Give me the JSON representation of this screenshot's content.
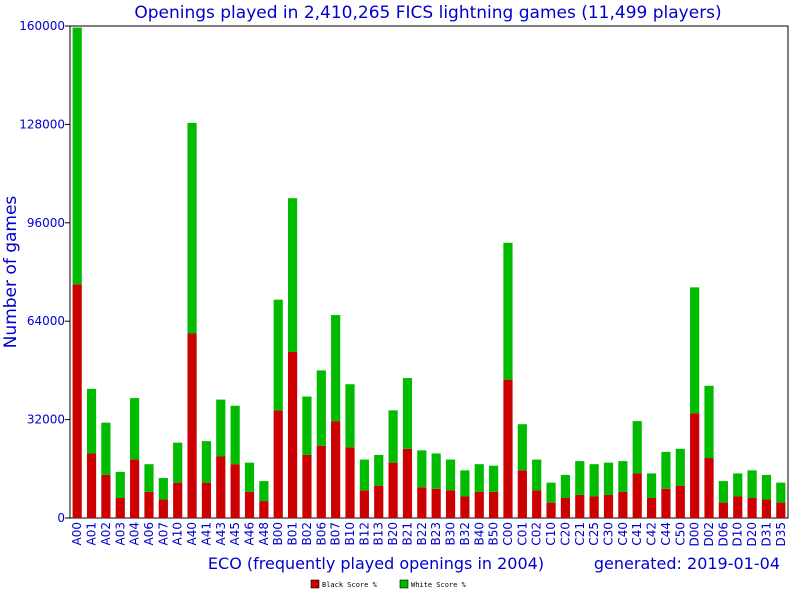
{
  "chart_data": {
    "type": "bar",
    "stacked": true,
    "title": "Openings played in 2,410,265 FICS lightning games (11,499 players)",
    "xlabel": "ECO (frequently played openings in 2004)",
    "ylabel": "Number of games",
    "footer": "generated: 2019-01-04",
    "ylim": [
      0,
      160000
    ],
    "yticks": [
      "0",
      "32000",
      "64000",
      "96000",
      "128000",
      "160000"
    ],
    "grid": false,
    "legend_position": "bottom-center",
    "categories": [
      "A00",
      "A01",
      "A02",
      "A03",
      "A04",
      "A06",
      "A07",
      "A10",
      "A40",
      "A41",
      "A43",
      "A45",
      "A46",
      "A48",
      "B00",
      "B01",
      "B02",
      "B06",
      "B07",
      "B10",
      "B12",
      "B13",
      "B20",
      "B21",
      "B22",
      "B23",
      "B30",
      "B32",
      "B40",
      "B50",
      "C00",
      "C01",
      "C02",
      "C10",
      "C20",
      "C21",
      "C25",
      "C30",
      "C40",
      "C41",
      "C42",
      "C44",
      "C50",
      "D00",
      "D02",
      "D06",
      "D10",
      "D20",
      "D31",
      "D35"
    ],
    "series": [
      {
        "name": "Black Score %",
        "color": "#cc0000",
        "values": [
          76000,
          21000,
          14000,
          6500,
          19000,
          8500,
          6000,
          11500,
          60000,
          11500,
          20000,
          17500,
          8500,
          5500,
          35000,
          54000,
          20500,
          23500,
          31500,
          23000,
          9000,
          10500,
          18000,
          22500,
          10000,
          9500,
          9000,
          7000,
          8500,
          8500,
          45000,
          15500,
          9000,
          5000,
          6500,
          7500,
          7000,
          7500,
          8500,
          14500,
          6500,
          9500,
          10500,
          34000,
          19500,
          5000,
          7000,
          6500,
          6000,
          5000
        ]
      },
      {
        "name": "White Score %",
        "color": "#00bb00",
        "values": [
          83500,
          21000,
          17000,
          8500,
          20000,
          9000,
          7000,
          13000,
          68500,
          13500,
          18500,
          19000,
          9500,
          6500,
          36000,
          50000,
          19000,
          24500,
          34500,
          20500,
          10000,
          10000,
          17000,
          23000,
          12000,
          11500,
          10000,
          8500,
          9000,
          8500,
          44500,
          15000,
          10000,
          6500,
          7500,
          11000,
          10500,
          10500,
          10000,
          17000,
          8000,
          12000,
          12000,
          41000,
          23500,
          7000,
          7500,
          9000,
          8000,
          6500
        ]
      }
    ]
  }
}
